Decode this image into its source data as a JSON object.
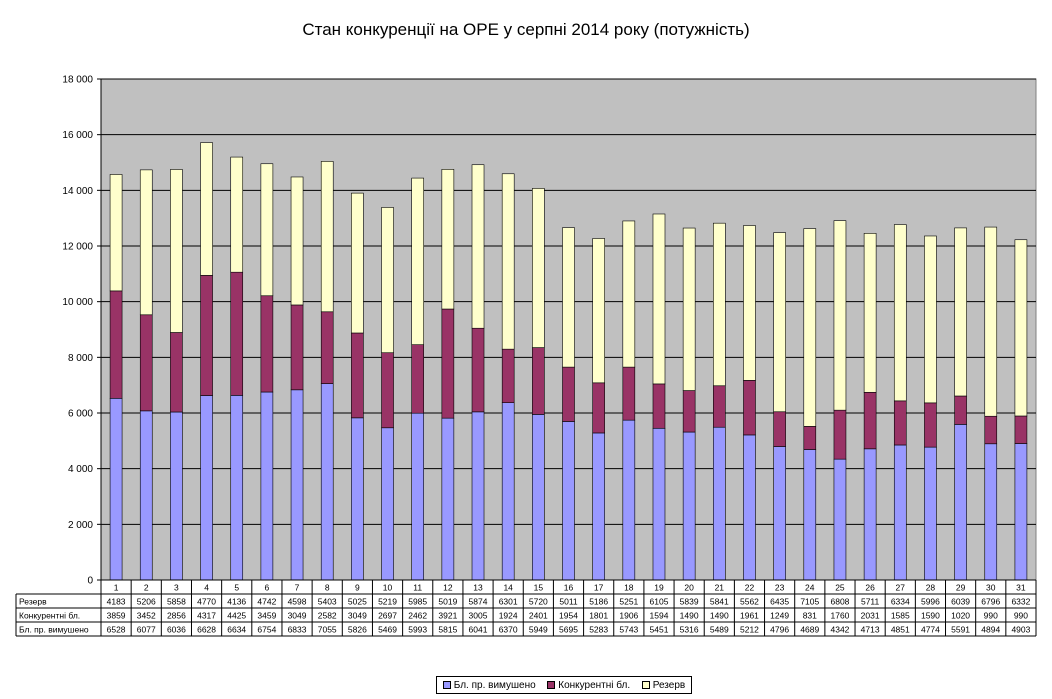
{
  "chart_data": {
    "type": "bar",
    "stacked": true,
    "title": "Стан конкуренції на ОРЕ  у серпні 2014 року (потужність)",
    "xlabel": "",
    "ylabel": "",
    "ylim": [
      0,
      18000
    ],
    "y_ticks": [
      "0",
      "2 000",
      "4 000",
      "6 000",
      "8 000",
      "10 000",
      "12 000",
      "14 000",
      "16 000",
      "18 000"
    ],
    "grid": true,
    "legend_position": "bottom",
    "categories": [
      "1",
      "2",
      "3",
      "4",
      "5",
      "6",
      "7",
      "8",
      "9",
      "10",
      "11",
      "12",
      "13",
      "14",
      "15",
      "16",
      "17",
      "18",
      "19",
      "20",
      "21",
      "22",
      "23",
      "24",
      "25",
      "26",
      "27",
      "28",
      "29",
      "30",
      "31"
    ],
    "series": [
      {
        "name": "Бл. пр. вимушено",
        "color": "#9999ff",
        "values": [
          6528,
          6077,
          6036,
          6628,
          6634,
          6754,
          6833,
          7055,
          5826,
          5469,
          5993,
          5815,
          6041,
          6370,
          5949,
          5695,
          5283,
          5743,
          5451,
          5316,
          5489,
          5212,
          4796,
          4689,
          4342,
          4713,
          4851,
          4774,
          5591,
          4894,
          4903
        ]
      },
      {
        "name": "Конкурентні бл.",
        "color": "#993366",
        "values": [
          3859,
          3452,
          2856,
          4317,
          4425,
          3459,
          3049,
          2582,
          3049,
          2697,
          2462,
          3921,
          3005,
          1924,
          2401,
          1954,
          1801,
          1906,
          1594,
          1490,
          1490,
          1961,
          1249,
          831,
          1760,
          2031,
          1585,
          1590,
          1020,
          990,
          990
        ]
      },
      {
        "name": "Резерв",
        "color": "#ffffcc",
        "values": [
          4183,
          5206,
          5858,
          4770,
          4136,
          4742,
          4598,
          5403,
          5025,
          5219,
          5985,
          5019,
          5874,
          6301,
          5720,
          5011,
          5186,
          5251,
          6105,
          5839,
          5841,
          5562,
          6435,
          7105,
          6808,
          5711,
          6334,
          5996,
          6039,
          6796,
          6332
        ]
      }
    ],
    "table_rows": [
      {
        "label": "Резерв",
        "series_index": 2
      },
      {
        "label": "Конкурентні бл.",
        "series_index": 1
      },
      {
        "label": "Бл. пр. вимушено",
        "series_index": 0
      }
    ],
    "legend": [
      {
        "label": "Бл. пр. вимушено",
        "series_index": 0
      },
      {
        "label": "Конкурентні бл.",
        "series_index": 1
      },
      {
        "label": "Резерв",
        "series_index": 2
      }
    ],
    "colors": {
      "plot_background": "#c0c0c0",
      "gridline": "#000000"
    }
  }
}
